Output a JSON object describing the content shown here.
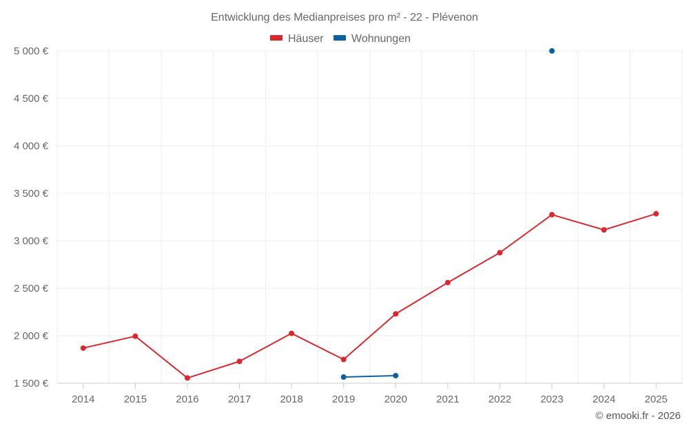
{
  "chart_data": {
    "type": "line",
    "title": "Entwicklung des Medianpreises pro m² - 22 - Plévenon",
    "categories": [
      "2014",
      "2015",
      "2016",
      "2017",
      "2018",
      "2019",
      "2020",
      "2021",
      "2022",
      "2023",
      "2024",
      "2025"
    ],
    "series": [
      {
        "name": "Häuser",
        "color": "#d9292e",
        "values": [
          1870,
          1995,
          1555,
          1730,
          2025,
          1750,
          2230,
          2560,
          2875,
          3275,
          3115,
          3285
        ]
      },
      {
        "name": "Wohnungen",
        "color": "#0a62a0",
        "values": [
          null,
          null,
          null,
          null,
          null,
          1565,
          1580,
          null,
          null,
          5000,
          null,
          null
        ]
      }
    ],
    "y_ticks": [
      "1 500 €",
      "2 000 €",
      "2 500 €",
      "3 000 €",
      "3 500 €",
      "4 000 €",
      "4 500 €",
      "5 000 €"
    ],
    "y_tick_values": [
      1500,
      2000,
      2500,
      3000,
      3500,
      4000,
      4500,
      5000
    ],
    "ylim": [
      1500,
      5000
    ],
    "xlabel": "",
    "ylabel": "",
    "legend_position": "top-center",
    "grid": true,
    "credit": "© emooki.fr - 2026"
  }
}
